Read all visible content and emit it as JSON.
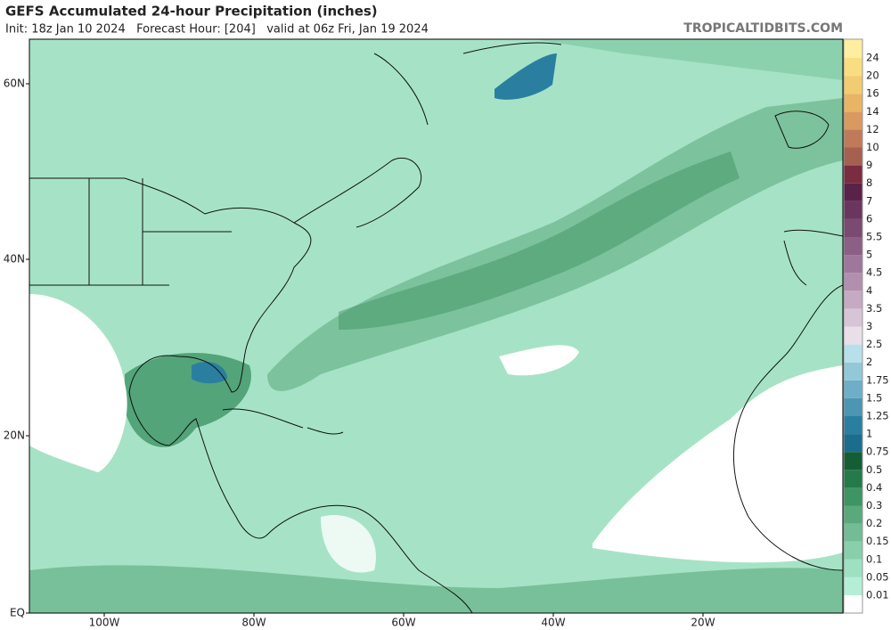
{
  "header": {
    "title": "GEFS Accumulated 24-hour Precipitation (inches)",
    "subtitle": "Init: 18z Jan 10 2024   Forecast Hour: [204]   valid at 06z Fri, Jan 19 2024",
    "source": "TROPICALTIDBITS.COM"
  },
  "map": {
    "lat_labels": [
      "60N",
      "40N",
      "20N",
      "EQ"
    ],
    "lon_labels": [
      "100W",
      "80W",
      "60W",
      "40W",
      "20W"
    ]
  },
  "colorbar": {
    "levels": [
      0.01,
      0.05,
      0.1,
      0.15,
      0.2,
      0.3,
      0.4,
      0.5,
      0.75,
      1,
      1.25,
      1.5,
      1.75,
      2,
      2.5,
      3,
      3.5,
      4,
      4.5,
      5,
      5.5,
      6,
      7,
      8,
      9,
      10,
      12,
      14,
      16,
      20,
      24
    ],
    "colors": [
      "#ffffff",
      "#b5eed6",
      "#9fe0c2",
      "#88cfab",
      "#72bd95",
      "#5aa97c",
      "#3f9464",
      "#257a4a",
      "#155e35",
      "#1b6d8e",
      "#2a7fa0",
      "#4d96b3",
      "#6eaec6",
      "#93c8d8",
      "#b7e0ea",
      "#e8dfe8",
      "#d6c5d6",
      "#c4aac2",
      "#b18fae",
      "#9e779a",
      "#8b5f86",
      "#7a4a72",
      "#6a365f",
      "#5a2249",
      "#7a2c40",
      "#a5604f",
      "#c07a5a",
      "#d89a60",
      "#e8b465",
      "#f2cc70",
      "#f8de80",
      "#fdeea0"
    ]
  }
}
